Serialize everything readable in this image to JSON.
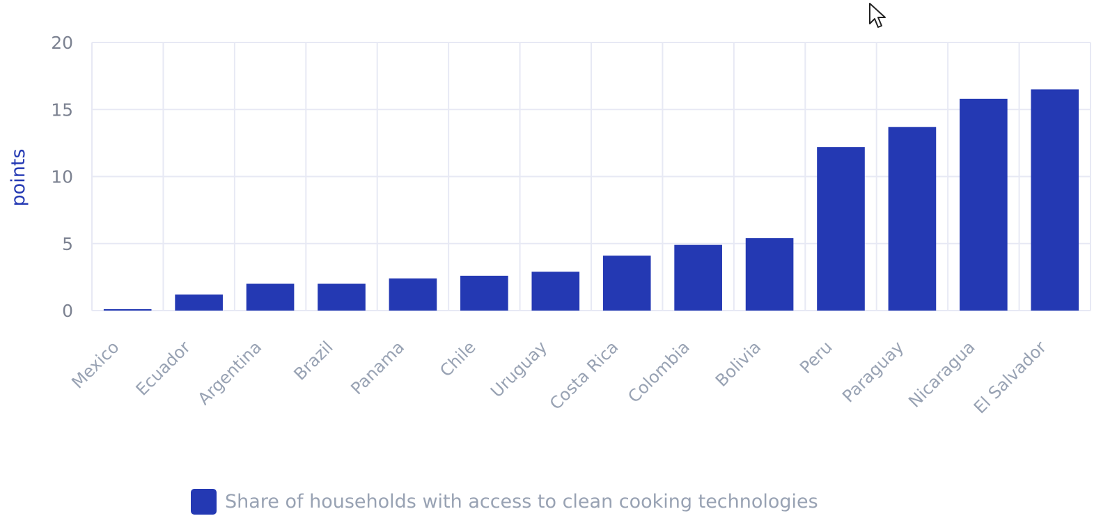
{
  "chart_data": {
    "type": "bar",
    "title": "",
    "xlabel": "",
    "ylabel": "points",
    "ylim": [
      0,
      20
    ],
    "yticks": [
      "0",
      "5",
      "10",
      "15",
      "20"
    ],
    "grid": true,
    "legend_position": "bottom",
    "categories": [
      "Mexico",
      "Ecuador",
      "Argentina",
      "Brazil",
      "Panama",
      "Chile",
      "Uruguay",
      "Costa Rica",
      "Colombia",
      "Bolivia",
      "Peru",
      "Paraguay",
      "Nicaragua",
      "El Salvador"
    ],
    "series": [
      {
        "name": "Share of households with access to clean cooking technologies",
        "color": "#2439b3",
        "values": [
          0.1,
          1.2,
          2.0,
          2.0,
          2.4,
          2.6,
          2.9,
          4.1,
          4.9,
          5.4,
          12.2,
          13.7,
          15.8,
          16.5
        ]
      }
    ]
  },
  "colors": {
    "bar": "#2439b3",
    "grid": "#e7e9f4",
    "tick_text": "#7b8190",
    "category_text": "#98a2b3",
    "ylabel_text": "#2439b3"
  },
  "icons": {
    "cursor": "mouse-pointer-icon"
  }
}
